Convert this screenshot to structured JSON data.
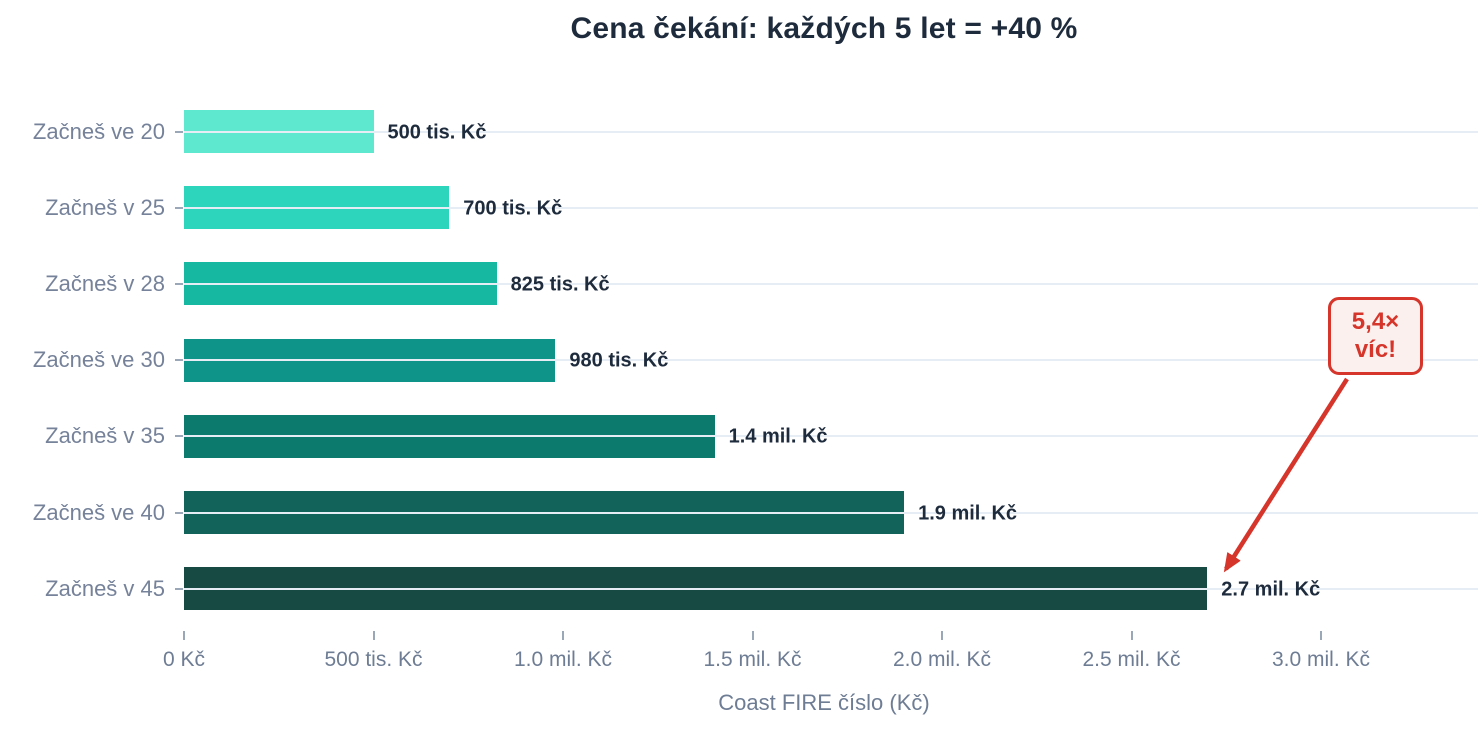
{
  "title": "Cena čekání: každých 5 let = +40 %",
  "annotation": {
    "line1": "5,4×",
    "line2": "víc!",
    "full_text": "5,4× víc!",
    "target_category": "Začneš v 45",
    "color": "#d5352a",
    "fill": "#fcf0ee"
  },
  "chart_data": {
    "type": "bar",
    "orientation": "horizontal",
    "title": "Cena čekání: každých 5 let = +40 %",
    "xlabel": "Coast FIRE číslo (Kč)",
    "ylabel": "",
    "categories": [
      "Začneš ve 20",
      "Začneš v 25",
      "Začneš v 28",
      "Začneš ve 30",
      "Začneš v 35",
      "Začneš ve 40",
      "Začneš v 45"
    ],
    "values": [
      500000,
      700000,
      825000,
      980000,
      1400000,
      1900000,
      2700000
    ],
    "value_labels": [
      "500 tis. Kč",
      "700 tis. Kč",
      "825 tis. Kč",
      "980 tis. Kč",
      "1.4 mil. Kč",
      "1.9 mil. Kč",
      "2.7 mil. Kč"
    ],
    "bar_colors": [
      "#5ee8d0",
      "#2ed5bd",
      "#16b8a1",
      "#0f9489",
      "#0d7a6e",
      "#12635a",
      "#164a42"
    ],
    "x_ticks": [
      {
        "value": 0,
        "label": "0 Kč"
      },
      {
        "value": 500000,
        "label": "500 tis. Kč"
      },
      {
        "value": 1000000,
        "label": "1.0 mil. Kč"
      },
      {
        "value": 1500000,
        "label": "1.5 mil. Kč"
      },
      {
        "value": 2000000,
        "label": "2.0 mil. Kč"
      },
      {
        "value": 2500000,
        "label": "2.5 mil. Kč"
      },
      {
        "value": 3000000,
        "label": "3.0 mil. Kč"
      }
    ],
    "xlim": [
      0,
      3400000
    ],
    "grid": "horizontal-category-gridlines",
    "legend": "none"
  },
  "colors": {
    "title_text": "#1e2b3c",
    "value_text": "#1e2b3c",
    "axis_text": "#6e7d94",
    "category_text": "#758299",
    "gridline": "#e7edf4",
    "tick": "#9aa7b8",
    "background": "#ffffff",
    "annotation_red": "#d5352a"
  }
}
